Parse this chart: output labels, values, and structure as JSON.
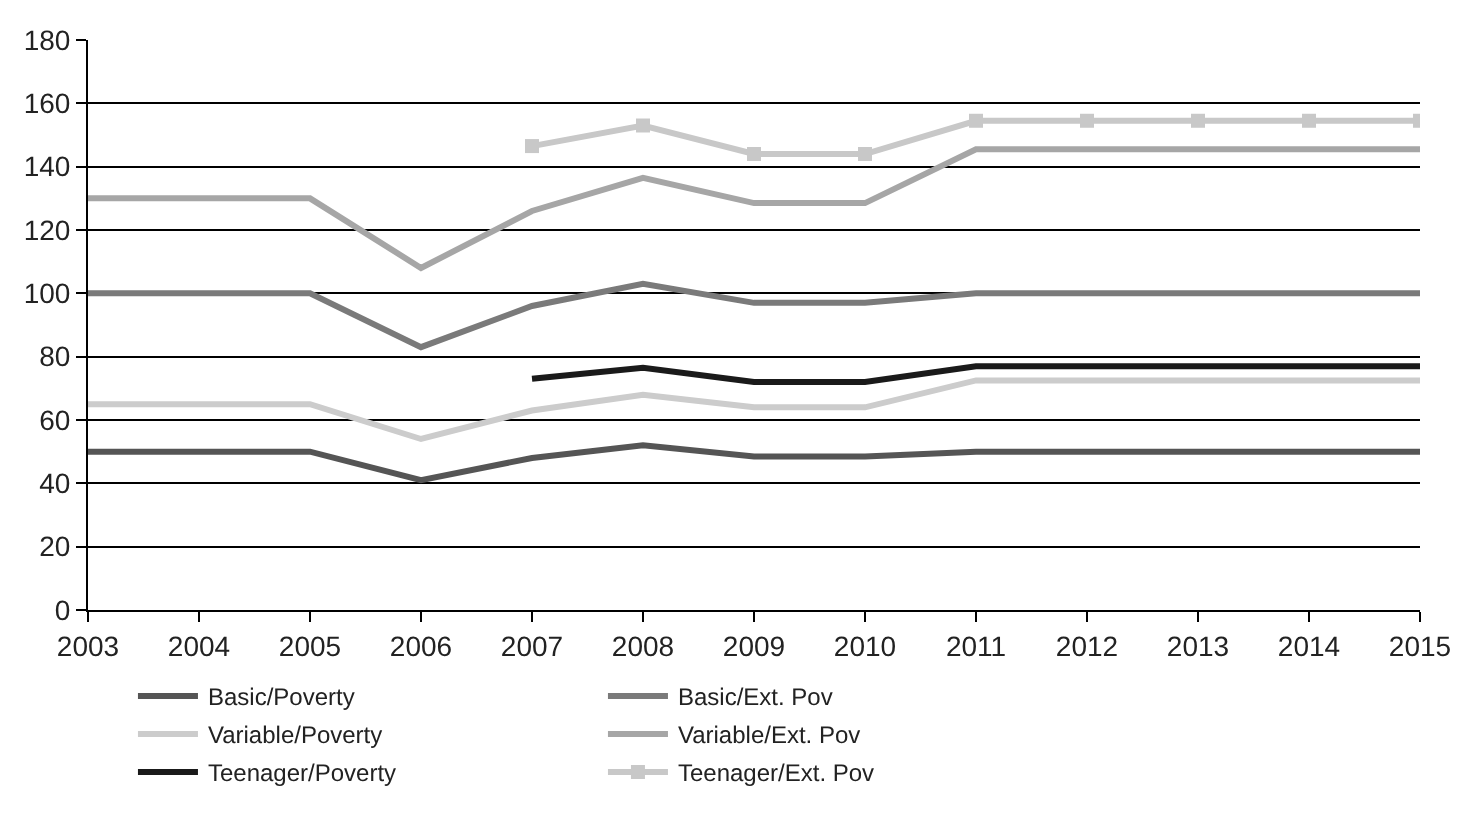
{
  "chart_data": {
    "type": "line",
    "xlim": [
      2003,
      2015
    ],
    "xticks": [
      2003,
      2004,
      2005,
      2006,
      2007,
      2008,
      2009,
      2010,
      2011,
      2012,
      2013,
      2014,
      2015
    ],
    "ylim": [
      0,
      180
    ],
    "yticks": [
      0,
      20,
      40,
      60,
      80,
      100,
      120,
      140,
      160,
      180
    ],
    "grid": "y",
    "legend": "bottom",
    "marker": "none",
    "series": [
      {
        "name": "Basic/Poverty",
        "color": "#555555",
        "x": [
          2003,
          2005,
          2006,
          2007,
          2008,
          2009,
          2010,
          2011,
          2012,
          2013,
          2014,
          2015
        ],
        "values": [
          50,
          50,
          41,
          48,
          52,
          48.5,
          48.5,
          50,
          50,
          50,
          50,
          50
        ]
      },
      {
        "name": "Basic/Ext. Pov",
        "color": "#7a7a7a",
        "x": [
          2003,
          2005,
          2006,
          2007,
          2008,
          2009,
          2010,
          2011,
          2012,
          2013,
          2014,
          2015
        ],
        "values": [
          100,
          100,
          83,
          96,
          103,
          97,
          97,
          100,
          100,
          100,
          100,
          100
        ]
      },
      {
        "name": "Variable/Poverty",
        "color": "#cccccc",
        "x": [
          2003,
          2005,
          2006,
          2007,
          2008,
          2009,
          2010,
          2011,
          2012,
          2013,
          2014,
          2015
        ],
        "values": [
          65,
          65,
          54,
          63,
          68,
          64,
          64,
          72.5,
          72.5,
          72.5,
          72.5,
          72.5
        ]
      },
      {
        "name": "Variable/Ext. Pov",
        "color": "#a6a6a6",
        "x": [
          2003,
          2005,
          2006,
          2007,
          2008,
          2009,
          2010,
          2011,
          2012,
          2013,
          2014,
          2015
        ],
        "values": [
          130,
          130,
          108,
          126,
          136.5,
          128.5,
          128.5,
          145.5,
          145.5,
          145.5,
          145.5,
          145.5
        ]
      },
      {
        "name": "Teenager/Poverty",
        "color": "#1a1a1a",
        "x": [
          2007,
          2008,
          2009,
          2010,
          2011,
          2012,
          2013,
          2014,
          2015
        ],
        "values": [
          73,
          76.5,
          72,
          72,
          77,
          77,
          77,
          77,
          77
        ]
      },
      {
        "name": "Teenager/Ext. Pov",
        "color": "#c8c8c8",
        "marker": "square",
        "x": [
          2007,
          2008,
          2009,
          2010,
          2011,
          2012,
          2013,
          2014,
          2015
        ],
        "values": [
          146.5,
          153,
          144,
          144,
          154.5,
          154.5,
          154.5,
          154.5,
          154.5
        ]
      }
    ]
  }
}
